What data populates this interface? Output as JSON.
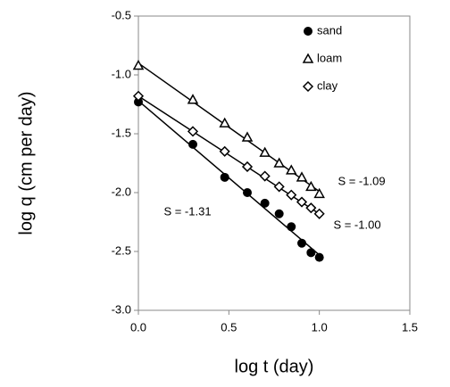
{
  "chart_data": {
    "type": "scatter",
    "xlabel": "log t (day)",
    "ylabel": "log q (cm per day)",
    "x": [
      0,
      0.301,
      0.477,
      0.602,
      0.699,
      0.778,
      0.845,
      0.903,
      0.954,
      1.0
    ],
    "series": [
      {
        "name": "sand",
        "color": "#000000",
        "marker": "circle",
        "values": [
          -1.23,
          -1.59,
          -1.87,
          -2.0,
          -2.09,
          -2.18,
          -2.29,
          -2.43,
          -2.51,
          -2.55
        ],
        "fit": {
          "x": [
            0,
            1.0
          ],
          "values": [
            -1.22,
            -2.53
          ]
        }
      },
      {
        "name": "loam",
        "color": "#000000",
        "marker": "triangle",
        "values": [
          -0.92,
          -1.21,
          -1.41,
          -1.53,
          -1.66,
          -1.75,
          -1.81,
          -1.87,
          -1.95,
          -2.01
        ],
        "fit": {
          "x": [
            0,
            1.0
          ],
          "values": [
            -0.9,
            -1.99
          ]
        }
      },
      {
        "name": "clay",
        "color": "#000000",
        "marker": "diamond",
        "values": [
          -1.18,
          -1.48,
          -1.65,
          -1.78,
          -1.86,
          -1.95,
          -2.02,
          -2.08,
          -2.13,
          -2.18
        ],
        "fit": {
          "x": [
            0,
            1.0
          ],
          "values": [
            -1.18,
            -2.18
          ]
        }
      }
    ],
    "annotations": [
      "S = -1.31",
      "S = -1.09",
      "S = -1.00"
    ],
    "xlim": [
      0,
      1.5
    ],
    "xticks": [
      {
        "value": 0,
        "label": "0.0"
      },
      0.5,
      {
        "value": 1,
        "label": "1.0"
      },
      1.5
    ],
    "ylim": [
      -3,
      -0.5
    ],
    "yticks": [
      {
        "value": -3,
        "label": "-3.0"
      },
      -2.5,
      {
        "value": -2,
        "label": "-2.0"
      },
      -1.5,
      {
        "value": -1,
        "label": "-1.0"
      },
      -0.5
    ],
    "grid": false,
    "legend": "top-right"
  }
}
